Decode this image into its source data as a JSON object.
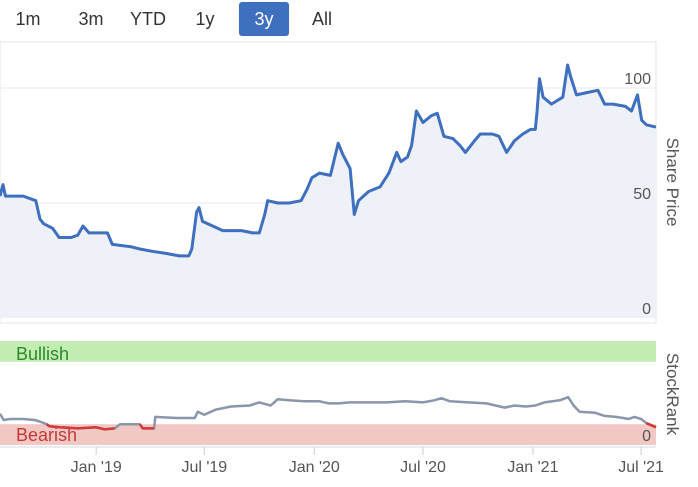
{
  "range_selector": {
    "buttons": [
      "1m",
      "3m",
      "YTD",
      "1y",
      "3y",
      "All"
    ],
    "active": "3y"
  },
  "chart_data": [
    {
      "type": "area",
      "ylabel": "Share Price",
      "ylim": [
        0,
        120
      ],
      "yticks": [
        0,
        50,
        100
      ],
      "xlim": [
        "2018-07-24",
        "2021-07-26"
      ],
      "xticks": [
        "Jan '19",
        "Jul '19",
        "Jan '20",
        "Jul '20",
        "Jan '21",
        "Jul '21"
      ],
      "color": "#3f6fbf",
      "series": [
        {
          "values": [
            [
              "2018-07-24",
              53
            ],
            [
              "2018-07-29",
              58
            ],
            [
              "2018-08-02",
              53
            ],
            [
              "2018-09-01",
              53
            ],
            [
              "2018-09-22",
              51
            ],
            [
              "2018-09-29",
              43
            ],
            [
              "2018-10-05",
              41
            ],
            [
              "2018-10-20",
              39
            ],
            [
              "2018-10-31",
              35
            ],
            [
              "2018-11-20",
              35
            ],
            [
              "2018-12-01",
              36
            ],
            [
              "2018-12-10",
              40
            ],
            [
              "2018-12-20",
              37
            ],
            [
              "2019-01-20",
              37
            ],
            [
              "2019-01-28",
              32
            ],
            [
              "2019-02-28",
              31
            ],
            [
              "2019-03-15",
              30
            ],
            [
              "2019-04-05",
              29
            ],
            [
              "2019-04-30",
              28
            ],
            [
              "2019-05-20",
              27
            ],
            [
              "2019-06-05",
              27
            ],
            [
              "2019-06-10",
              30
            ],
            [
              "2019-06-18",
              46
            ],
            [
              "2019-06-22",
              48
            ],
            [
              "2019-06-28",
              42
            ],
            [
              "2019-07-15",
              40
            ],
            [
              "2019-08-01",
              38
            ],
            [
              "2019-09-01",
              38
            ],
            [
              "2019-09-20",
              37
            ],
            [
              "2019-10-01",
              37
            ],
            [
              "2019-10-10",
              45
            ],
            [
              "2019-10-15",
              51
            ],
            [
              "2019-11-01",
              50
            ],
            [
              "2019-11-20",
              50
            ],
            [
              "2019-12-10",
              51
            ],
            [
              "2019-12-20",
              56
            ],
            [
              "2019-12-28",
              61
            ],
            [
              "2020-01-10",
              63
            ],
            [
              "2020-01-28",
              62
            ],
            [
              "2020-02-10",
              76
            ],
            [
              "2020-02-18",
              71
            ],
            [
              "2020-03-01",
              65
            ],
            [
              "2020-03-08",
              45
            ],
            [
              "2020-03-15",
              51
            ],
            [
              "2020-04-01",
              55
            ],
            [
              "2020-04-20",
              57
            ],
            [
              "2020-05-05",
              63
            ],
            [
              "2020-05-18",
              72
            ],
            [
              "2020-05-25",
              68
            ],
            [
              "2020-06-05",
              70
            ],
            [
              "2020-06-12",
              75
            ],
            [
              "2020-06-20",
              90
            ],
            [
              "2020-07-01",
              85
            ],
            [
              "2020-07-15",
              88
            ],
            [
              "2020-07-25",
              89
            ],
            [
              "2020-08-05",
              79
            ],
            [
              "2020-08-20",
              78
            ],
            [
              "2020-09-01",
              75
            ],
            [
              "2020-09-10",
              72
            ],
            [
              "2020-09-25",
              77
            ],
            [
              "2020-10-05",
              80
            ],
            [
              "2020-10-25",
              80
            ],
            [
              "2020-11-05",
              79
            ],
            [
              "2020-11-18",
              72
            ],
            [
              "2020-12-01",
              77
            ],
            [
              "2020-12-15",
              80
            ],
            [
              "2020-12-28",
              82
            ],
            [
              "2021-01-05",
              82
            ],
            [
              "2021-01-08",
              90
            ],
            [
              "2021-01-12",
              104
            ],
            [
              "2021-01-18",
              96
            ],
            [
              "2021-02-01",
              93
            ],
            [
              "2021-02-20",
              96
            ],
            [
              "2021-02-28",
              110
            ],
            [
              "2021-03-05",
              105
            ],
            [
              "2021-03-15",
              97
            ],
            [
              "2021-04-01",
              98
            ],
            [
              "2021-04-20",
              99
            ],
            [
              "2021-05-01",
              93
            ],
            [
              "2021-05-15",
              93
            ],
            [
              "2021-06-05",
              92
            ],
            [
              "2021-06-15",
              90
            ],
            [
              "2021-06-25",
              97
            ],
            [
              "2021-07-02",
              86
            ],
            [
              "2021-07-10",
              84
            ],
            [
              "2021-07-26",
              83
            ]
          ]
        }
      ]
    },
    {
      "type": "line",
      "ylabel": "StockRank",
      "ylim": [
        0,
        100
      ],
      "yticks": [
        0
      ],
      "bands": [
        {
          "label": "Bullish",
          "from": 80,
          "to": 100,
          "color": "#c4edb4",
          "text_color": "#2c8a2c"
        },
        {
          "label": "Bearish",
          "from": 0,
          "to": 20,
          "color": "#f2c8c4",
          "text_color": "#c43a3a"
        }
      ],
      "colors": {
        "neutral": "#8a96aa",
        "bearish": "#d43a3a"
      },
      "bearish_threshold": 20,
      "series": [
        {
          "values": [
            [
              "2018-07-24",
              30
            ],
            [
              "2018-07-30",
              24
            ],
            [
              "2018-08-10",
              25
            ],
            [
              "2018-09-01",
              25
            ],
            [
              "2018-09-20",
              24
            ],
            [
              "2018-10-01",
              22
            ],
            [
              "2018-10-10",
              20
            ],
            [
              "2018-10-15",
              18
            ],
            [
              "2018-11-01",
              17
            ],
            [
              "2018-12-01",
              16
            ],
            [
              "2019-01-01",
              17
            ],
            [
              "2019-01-15",
              15
            ],
            [
              "2019-02-01",
              16
            ],
            [
              "2019-02-10",
              20
            ],
            [
              "2019-03-01",
              20
            ],
            [
              "2019-03-15",
              20
            ],
            [
              "2019-03-20",
              16
            ],
            [
              "2019-04-08",
              16
            ],
            [
              "2019-04-10",
              27
            ],
            [
              "2019-05-15",
              26
            ],
            [
              "2019-06-15",
              26
            ],
            [
              "2019-06-20",
              32
            ],
            [
              "2019-07-01",
              29
            ],
            [
              "2019-07-20",
              34
            ],
            [
              "2019-08-15",
              37
            ],
            [
              "2019-09-15",
              38
            ],
            [
              "2019-10-01",
              41
            ],
            [
              "2019-10-20",
              38
            ],
            [
              "2019-11-01",
              44
            ],
            [
              "2019-11-20",
              43
            ],
            [
              "2019-12-15",
              42
            ],
            [
              "2020-01-10",
              42
            ],
            [
              "2020-01-25",
              40
            ],
            [
              "2020-02-10",
              40
            ],
            [
              "2020-03-01",
              41
            ],
            [
              "2020-04-01",
              41
            ],
            [
              "2020-05-01",
              41
            ],
            [
              "2020-06-01",
              42
            ],
            [
              "2020-07-01",
              41
            ],
            [
              "2020-07-20",
              43
            ],
            [
              "2020-08-01",
              45
            ],
            [
              "2020-08-15",
              42
            ],
            [
              "2020-09-15",
              41
            ],
            [
              "2020-10-15",
              40
            ],
            [
              "2020-11-15",
              36
            ],
            [
              "2020-12-01",
              38
            ],
            [
              "2020-12-20",
              37
            ],
            [
              "2021-01-05",
              38
            ],
            [
              "2021-01-20",
              41
            ],
            [
              "2021-02-15",
              43
            ],
            [
              "2021-03-01",
              46
            ],
            [
              "2021-03-10",
              38
            ],
            [
              "2021-03-20",
              32
            ],
            [
              "2021-04-15",
              31
            ],
            [
              "2021-05-01",
              28
            ],
            [
              "2021-05-20",
              27
            ],
            [
              "2021-06-01",
              26
            ],
            [
              "2021-06-10",
              25
            ],
            [
              "2021-06-20",
              27
            ],
            [
              "2021-07-01",
              25
            ],
            [
              "2021-07-10",
              21
            ],
            [
              "2021-07-18",
              19
            ],
            [
              "2021-07-26",
              17
            ]
          ]
        }
      ]
    }
  ]
}
